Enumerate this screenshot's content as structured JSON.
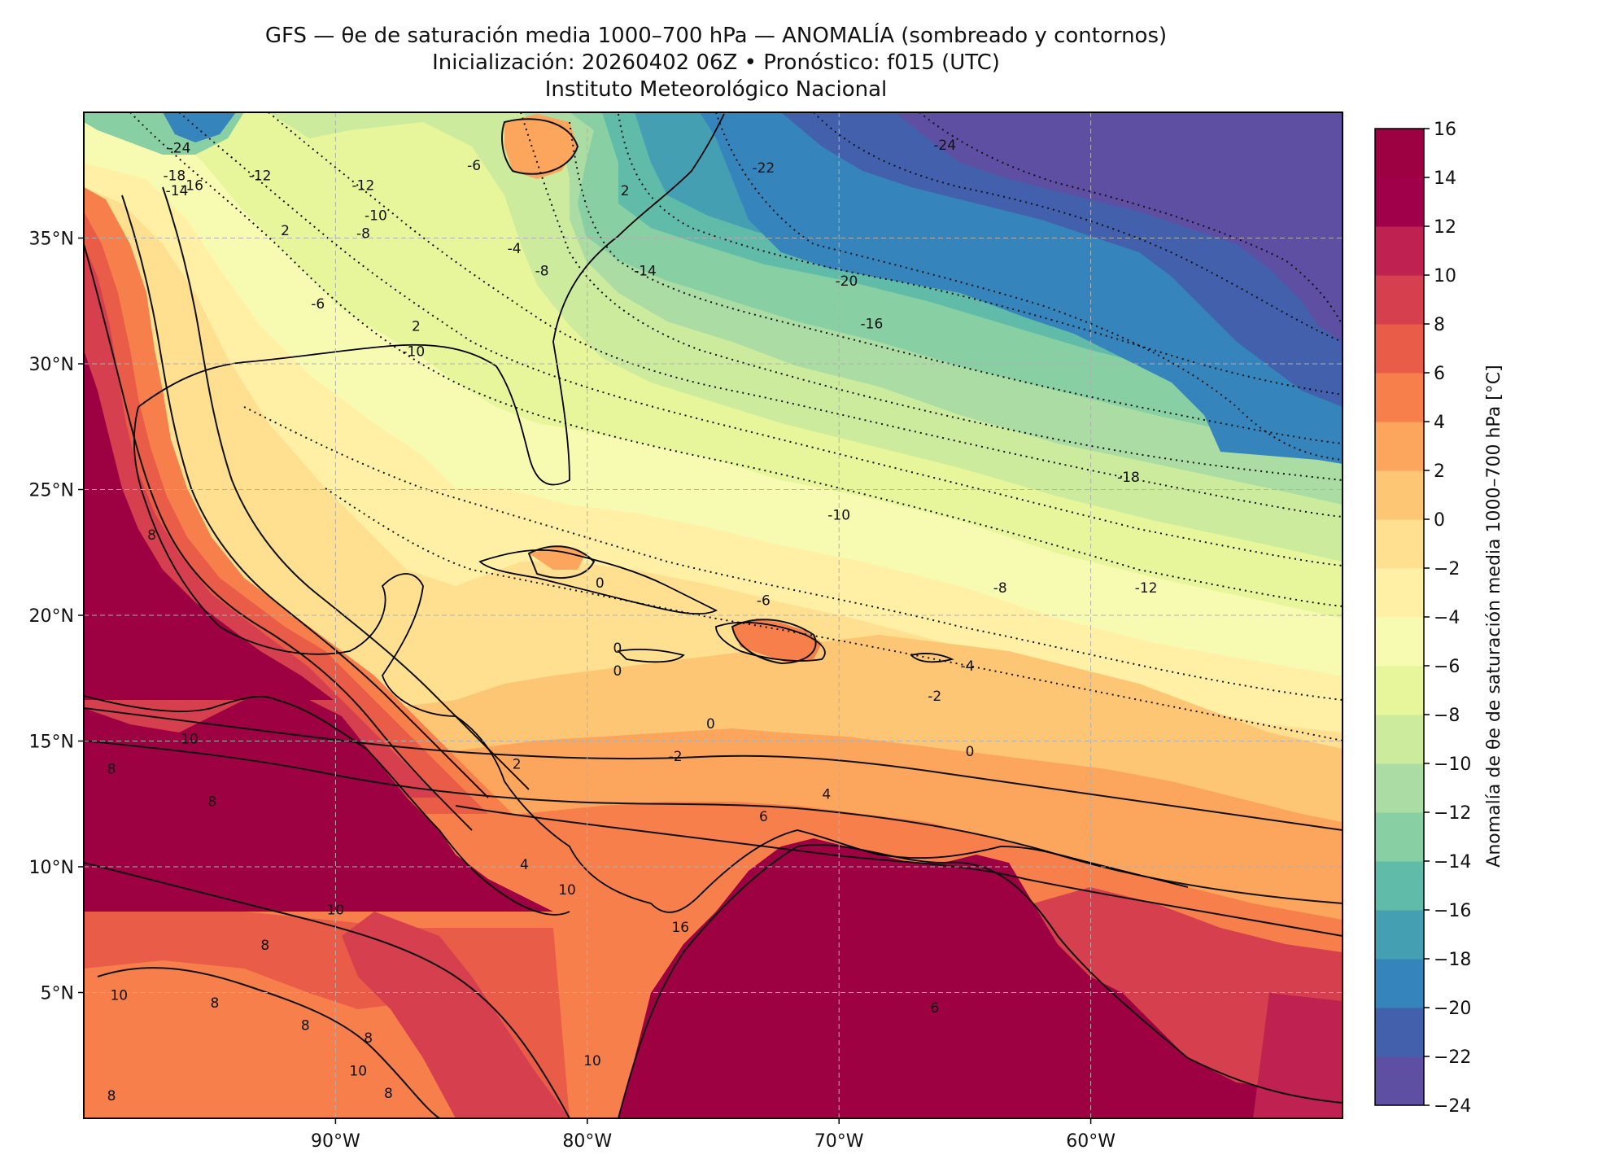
{
  "title": {
    "line1": "GFS — θe de saturación media 1000–700 hPa — ANOMALÍA (sombreado y contornos)",
    "line2": "Inicialización: 20260402 06Z   •   Pronóstico: f015 (UTC)",
    "line3": "Instituto Meteorológico Nacional"
  },
  "map": {
    "lon_range": [
      -100,
      -50
    ],
    "lat_range": [
      0,
      40
    ],
    "lon_ticks": [
      {
        "value": -90,
        "label": "90°W"
      },
      {
        "value": -80,
        "label": "80°W"
      },
      {
        "value": -70,
        "label": "70°W"
      },
      {
        "value": -60,
        "label": "60°W"
      }
    ],
    "lat_ticks": [
      {
        "value": 35,
        "label": "35°N"
      },
      {
        "value": 30,
        "label": "30°N"
      },
      {
        "value": 25,
        "label": "25°N"
      },
      {
        "value": 20,
        "label": "20°N"
      },
      {
        "value": 15,
        "label": "15°N"
      },
      {
        "value": 10,
        "label": "10°N"
      },
      {
        "value": 5,
        "label": "5°N"
      }
    ],
    "contour_labels": [
      {
        "lon": -96.2,
        "lat": 38.6,
        "text": "-24"
      },
      {
        "lon": -96.4,
        "lat": 37.5,
        "text": "-18"
      },
      {
        "lon": -95.7,
        "lat": 37.1,
        "text": "-16"
      },
      {
        "lon": -96.3,
        "lat": 36.9,
        "text": "-14"
      },
      {
        "lon": -93.0,
        "lat": 37.5,
        "text": "-12"
      },
      {
        "lon": -88.9,
        "lat": 37.1,
        "text": "-12"
      },
      {
        "lon": -88.4,
        "lat": 35.9,
        "text": "-10"
      },
      {
        "lon": -88.9,
        "lat": 35.2,
        "text": "-8"
      },
      {
        "lon": -84.5,
        "lat": 37.9,
        "text": "-6"
      },
      {
        "lon": -92.0,
        "lat": 35.3,
        "text": "2"
      },
      {
        "lon": -90.7,
        "lat": 32.4,
        "text": "-6"
      },
      {
        "lon": -86.8,
        "lat": 31.5,
        "text": "2"
      },
      {
        "lon": -86.9,
        "lat": 30.5,
        "text": "-10"
      },
      {
        "lon": -82.9,
        "lat": 34.6,
        "text": "-4"
      },
      {
        "lon": -81.8,
        "lat": 33.7,
        "text": "-8"
      },
      {
        "lon": -78.5,
        "lat": 36.9,
        "text": "2"
      },
      {
        "lon": -77.7,
        "lat": 33.7,
        "text": "-14"
      },
      {
        "lon": -73.0,
        "lat": 37.8,
        "text": "-22"
      },
      {
        "lon": -65.8,
        "lat": 38.7,
        "text": "-24"
      },
      {
        "lon": -69.7,
        "lat": 33.3,
        "text": "-20"
      },
      {
        "lon": -68.7,
        "lat": 31.6,
        "text": "-16"
      },
      {
        "lon": -58.5,
        "lat": 25.5,
        "text": "-18"
      },
      {
        "lon": -70.0,
        "lat": 24.0,
        "text": "-10"
      },
      {
        "lon": -73.0,
        "lat": 20.6,
        "text": "-6"
      },
      {
        "lon": -63.6,
        "lat": 21.1,
        "text": "-8"
      },
      {
        "lon": -57.8,
        "lat": 21.1,
        "text": "-12"
      },
      {
        "lon": -64.9,
        "lat": 18.0,
        "text": "-4"
      },
      {
        "lon": -66.2,
        "lat": 16.8,
        "text": "-2"
      },
      {
        "lon": -79.5,
        "lat": 21.3,
        "text": "0"
      },
      {
        "lon": -78.8,
        "lat": 18.7,
        "text": "0"
      },
      {
        "lon": -78.8,
        "lat": 17.8,
        "text": "0"
      },
      {
        "lon": -75.1,
        "lat": 15.7,
        "text": "0"
      },
      {
        "lon": -76.5,
        "lat": 14.4,
        "text": "-2"
      },
      {
        "lon": -64.8,
        "lat": 14.6,
        "text": "0"
      },
      {
        "lon": -82.8,
        "lat": 14.1,
        "text": "2"
      },
      {
        "lon": -70.5,
        "lat": 12.9,
        "text": "4"
      },
      {
        "lon": -73.0,
        "lat": 12.0,
        "text": "6"
      },
      {
        "lon": -82.5,
        "lat": 10.1,
        "text": "4"
      },
      {
        "lon": -95.8,
        "lat": 15.1,
        "text": "10"
      },
      {
        "lon": -98.9,
        "lat": 13.9,
        "text": "8"
      },
      {
        "lon": -94.9,
        "lat": 12.6,
        "text": "8"
      },
      {
        "lon": -97.3,
        "lat": 23.2,
        "text": "8"
      },
      {
        "lon": -90.0,
        "lat": 8.3,
        "text": "10"
      },
      {
        "lon": -92.8,
        "lat": 6.9,
        "text": "8"
      },
      {
        "lon": -98.6,
        "lat": 4.9,
        "text": "10"
      },
      {
        "lon": -94.8,
        "lat": 4.6,
        "text": "8"
      },
      {
        "lon": -91.2,
        "lat": 3.7,
        "text": "8"
      },
      {
        "lon": -88.7,
        "lat": 3.2,
        "text": "8"
      },
      {
        "lon": -89.1,
        "lat": 1.9,
        "text": "10"
      },
      {
        "lon": -87.9,
        "lat": 1.0,
        "text": "8"
      },
      {
        "lon": -80.8,
        "lat": 9.1,
        "text": "10"
      },
      {
        "lon": -76.3,
        "lat": 7.6,
        "text": "16"
      },
      {
        "lon": -79.8,
        "lat": 2.3,
        "text": "10"
      },
      {
        "lon": -66.2,
        "lat": 4.4,
        "text": "6"
      },
      {
        "lon": -98.9,
        "lat": 0.9,
        "text": "8"
      }
    ]
  },
  "colorbar": {
    "label": "Anomalía de θe de saturación media 1000–700 hPa [°C]",
    "levels": [
      -24,
      -22,
      -20,
      -18,
      -16,
      -14,
      -12,
      -10,
      -8,
      -6,
      -4,
      -2,
      0,
      2,
      4,
      6,
      8,
      10,
      12,
      14,
      16
    ],
    "tick_labels": [
      "−24",
      "−22",
      "−20",
      "−18",
      "−16",
      "−14",
      "−12",
      "−10",
      "−8",
      "−6",
      "−4",
      "−2",
      "0",
      "2",
      "4",
      "6",
      "8",
      "10",
      "12",
      "14",
      "16"
    ],
    "colors": [
      "#5e4fa2",
      "#4260ac",
      "#3585bc",
      "#459fb2",
      "#60bba8",
      "#88cfa4",
      "#aadca4",
      "#cdeb9d",
      "#e7f59b",
      "#f7fbb2",
      "#fff0a6",
      "#fee090",
      "#fdc675",
      "#fca55d",
      "#f67f4b",
      "#e95c47",
      "#d6404e",
      "#bf2150",
      "#a0004a",
      "#9e0142"
    ]
  }
}
